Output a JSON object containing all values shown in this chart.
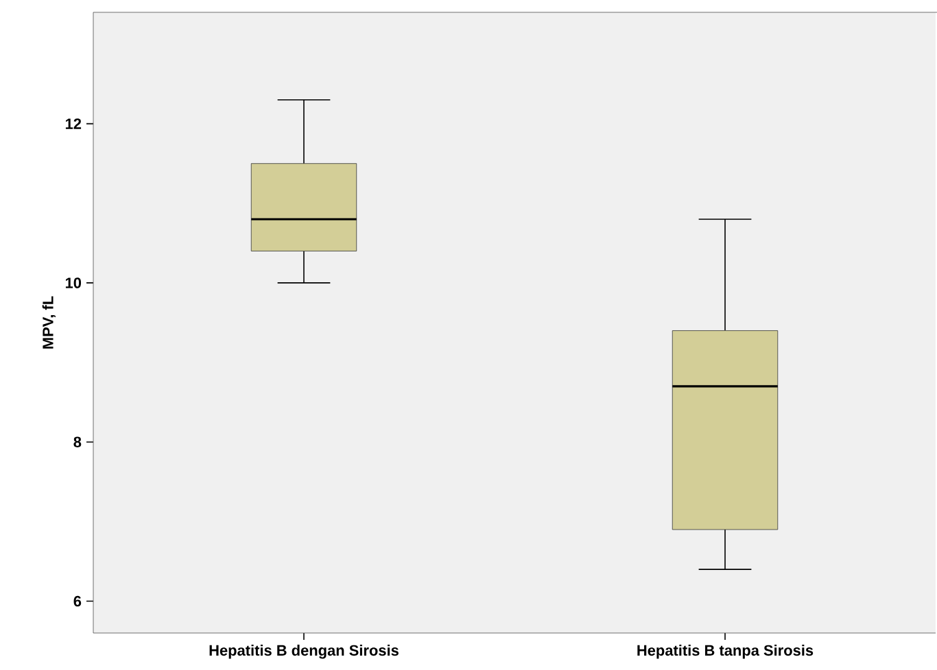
{
  "chart_data": {
    "type": "box",
    "ylabel": "MPV, fL",
    "categories": [
      "Hepatitis B dengan Sirosis",
      "Hepatitis B tanpa Sirosis"
    ],
    "boxes": [
      {
        "low": 10.0,
        "q1": 10.4,
        "median": 10.8,
        "q3": 11.5,
        "high": 12.3
      },
      {
        "low": 6.4,
        "q1": 6.9,
        "median": 8.7,
        "q3": 9.4,
        "high": 10.8
      }
    ],
    "color": "#d3ce97",
    "ylim": [
      5.6,
      13.4
    ],
    "yticks": [
      6,
      8,
      10,
      12
    ]
  }
}
